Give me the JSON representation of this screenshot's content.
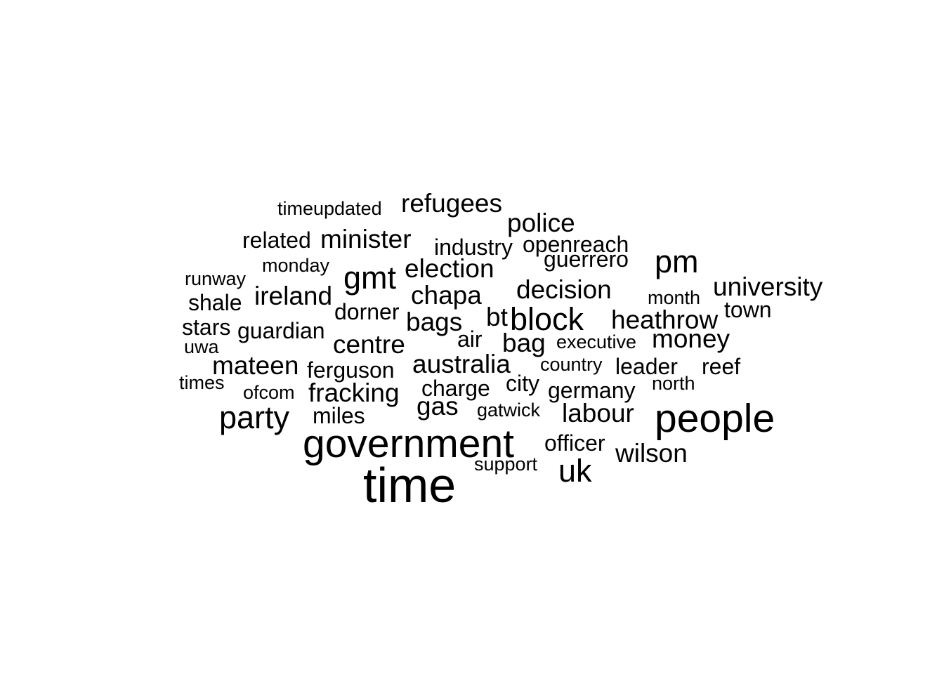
{
  "word_cloud": {
    "text_color": "#000000",
    "background": "#ffffff",
    "words": [
      {
        "text": "time",
        "tier": 6
      },
      {
        "text": "government",
        "tier": 5
      },
      {
        "text": "people",
        "tier": 5
      },
      {
        "text": "party",
        "tier": 4
      },
      {
        "text": "block",
        "tier": 4
      },
      {
        "text": "gmt",
        "tier": 4
      },
      {
        "text": "uk",
        "tier": 4
      },
      {
        "text": "pm",
        "tier": 4
      },
      {
        "text": "minister",
        "tier": 3
      },
      {
        "text": "election",
        "tier": 3
      },
      {
        "text": "decision",
        "tier": 3
      },
      {
        "text": "police",
        "tier": 3
      },
      {
        "text": "wilson",
        "tier": 3
      },
      {
        "text": "labour",
        "tier": 3
      },
      {
        "text": "university",
        "tier": 3
      },
      {
        "text": "refugees",
        "tier": 3
      },
      {
        "text": "centre",
        "tier": 3
      },
      {
        "text": "bags",
        "tier": 3
      },
      {
        "text": "bag",
        "tier": 3
      },
      {
        "text": "bt",
        "tier": 3
      },
      {
        "text": "mateen",
        "tier": 3
      },
      {
        "text": "fracking",
        "tier": 3
      },
      {
        "text": "australia",
        "tier": 3
      },
      {
        "text": "heathrow",
        "tier": 3
      },
      {
        "text": "money",
        "tier": 3
      },
      {
        "text": "chapa",
        "tier": 3
      },
      {
        "text": "ireland",
        "tier": 3
      },
      {
        "text": "gas",
        "tier": 3
      },
      {
        "text": "guerrero",
        "tier": 2
      },
      {
        "text": "officer",
        "tier": 2
      },
      {
        "text": "air",
        "tier": 2
      },
      {
        "text": "charge",
        "tier": 2
      },
      {
        "text": "guardian",
        "tier": 2
      },
      {
        "text": "ferguson",
        "tier": 2
      },
      {
        "text": "dorner",
        "tier": 2
      },
      {
        "text": "industry",
        "tier": 2
      },
      {
        "text": "openreach",
        "tier": 2
      },
      {
        "text": "related",
        "tier": 2
      },
      {
        "text": "city",
        "tier": 2
      },
      {
        "text": "germany",
        "tier": 2
      },
      {
        "text": "leader",
        "tier": 2
      },
      {
        "text": "reef",
        "tier": 2
      },
      {
        "text": "town",
        "tier": 2
      },
      {
        "text": "miles",
        "tier": 2
      },
      {
        "text": "shale",
        "tier": 2
      },
      {
        "text": "stars",
        "tier": 2
      },
      {
        "text": "timeupdated",
        "tier": 1
      },
      {
        "text": "monday",
        "tier": 1
      },
      {
        "text": "runway",
        "tier": 1
      },
      {
        "text": "uwa",
        "tier": 1
      },
      {
        "text": "times",
        "tier": 1
      },
      {
        "text": "ofcom",
        "tier": 1
      },
      {
        "text": "gatwick",
        "tier": 1
      },
      {
        "text": "support",
        "tier": 1
      },
      {
        "text": "executive",
        "tier": 1
      },
      {
        "text": "country",
        "tier": 1
      },
      {
        "text": "north",
        "tier": 1
      },
      {
        "text": "month",
        "tier": 1
      }
    ]
  }
}
